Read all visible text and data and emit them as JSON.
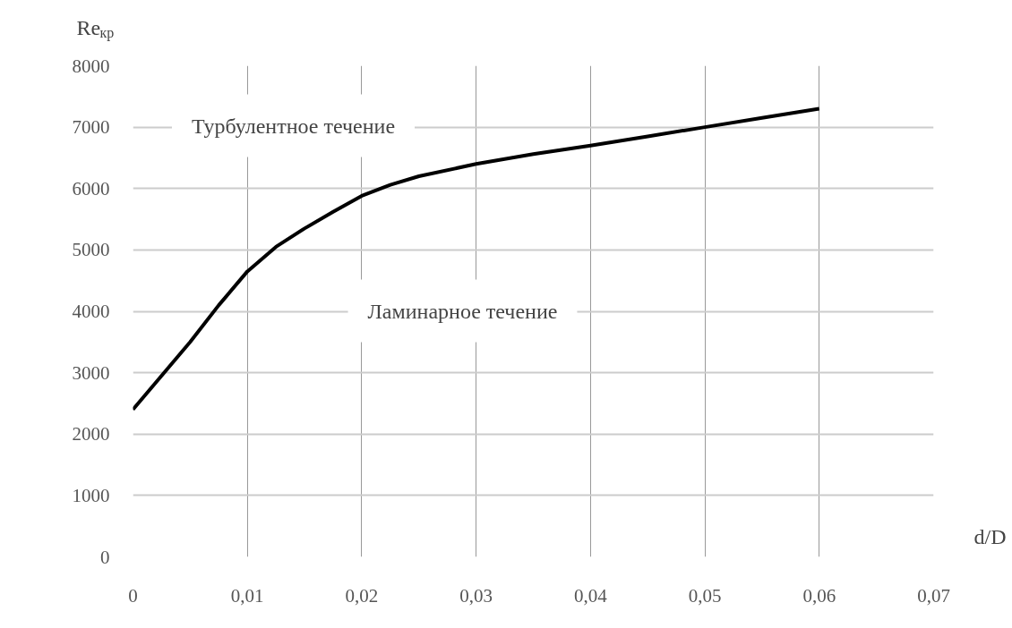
{
  "chart_data": {
    "type": "line",
    "xlabel": "d/D",
    "ylabel": "Re$_{кр}$",
    "x": [
      0,
      0.0025,
      0.005,
      0.0075,
      0.01,
      0.0125,
      0.015,
      0.0175,
      0.02,
      0.0225,
      0.025,
      0.03,
      0.035,
      0.04,
      0.045,
      0.05,
      0.055,
      0.06
    ],
    "series": [
      {
        "color": "#000000",
        "values": [
          2400,
          2950,
          3500,
          4100,
          4650,
          5050,
          5350,
          5620,
          5880,
          6060,
          6200,
          6400,
          6560,
          6700,
          6850,
          7000,
          7150,
          7300
        ]
      }
    ],
    "xlim": [
      0,
      0.07
    ],
    "ylim": [
      0,
      8000
    ],
    "xticks": [
      0,
      {
        "value": 0.01,
        "label": "0,01"
      },
      {
        "value": 0.02,
        "label": "0,02"
      },
      {
        "value": 0.03,
        "label": "0,03"
      },
      {
        "value": 0.04,
        "label": "0,04"
      },
      {
        "value": 0.05,
        "label": "0,05"
      },
      {
        "value": 0.06,
        "label": "0,06"
      },
      {
        "value": 0.07,
        "label": "0,07"
      }
    ],
    "yticks": [
      0,
      1000,
      2000,
      3000,
      4000,
      5000,
      6000,
      7000,
      8000
    ],
    "grid": true,
    "marker": "none",
    "line_style": "solid",
    "annotations": [
      "Турбулентное течение",
      "Ламинарное течение"
    ]
  }
}
